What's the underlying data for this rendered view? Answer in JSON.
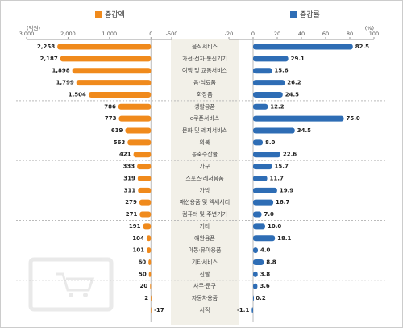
{
  "chart_data": {
    "type": "bar",
    "categories": [
      "음식서비스",
      "가전·전자·통신기기",
      "여행 및 교통서비스",
      "음·식료품",
      "화장품",
      "생활용품",
      "e쿠폰서비스",
      "문화 및 레저서비스",
      "의복",
      "농축수산물",
      "가구",
      "스포츠·레저용품",
      "가방",
      "패션용품 및 액세서리",
      "컴퓨터 및 주변기기",
      "기타",
      "애완용품",
      "아동·유아용품",
      "기타서비스",
      "신발",
      "사무·문구",
      "자동차용품",
      "서적"
    ],
    "series": [
      {
        "name": "증감액",
        "color": "#f08a1c",
        "axis": "x",
        "values": [
          2258,
          2187,
          1898,
          1799,
          1504,
          786,
          773,
          619,
          563,
          421,
          333,
          319,
          311,
          279,
          271,
          191,
          104,
          101,
          60,
          50,
          20,
          2,
          -17
        ],
        "value_labels": [
          "2,258",
          "2,187",
          "1,898",
          "1,799",
          "1,504",
          "786",
          "773",
          "619",
          "563",
          "421",
          "333",
          "319",
          "311",
          "279",
          "271",
          "191",
          "104",
          "101",
          "60",
          "50",
          "20",
          "2",
          "-17"
        ]
      },
      {
        "name": "증감률",
        "color": "#2e6db5",
        "axis": "x2",
        "values": [
          82.5,
          29.1,
          15.6,
          26.2,
          24.5,
          12.2,
          75.0,
          34.5,
          8.0,
          22.6,
          15.7,
          11.7,
          19.9,
          16.7,
          7.0,
          10.0,
          18.1,
          4.0,
          8.8,
          3.8,
          3.6,
          0.2,
          -1.1
        ],
        "value_labels": [
          "82.5",
          "29.1",
          "15.6",
          "26.2",
          "24.5",
          "12.2",
          "75.0",
          "34.5",
          "8.0",
          "22.6",
          "15.7",
          "11.7",
          "19.9",
          "16.7",
          "7.0",
          "10.0",
          "18.1",
          "4.0",
          "8.8",
          "3.8",
          "3.6",
          "0.2",
          "-1.1"
        ]
      }
    ],
    "xlabel": "(억원)",
    "x2label": "(%)",
    "xlim": [
      3000,
      -500
    ],
    "xticks": [
      {
        "value": 3000,
        "label": "3,000"
      },
      {
        "value": 2000,
        "label": "2,000"
      },
      {
        "value": 1000,
        "label": "1,000"
      },
      0,
      -500
    ],
    "x2lim": [
      -20,
      100
    ],
    "x2ticks": [
      -20,
      0,
      20,
      40,
      60,
      80,
      100
    ]
  }
}
